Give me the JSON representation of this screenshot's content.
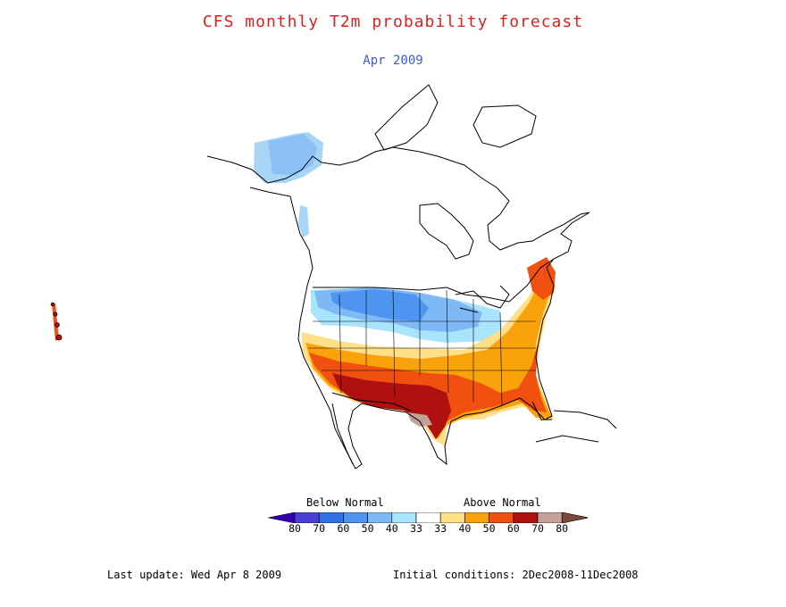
{
  "header": {
    "title": "CFS monthly T2m probability forecast",
    "subtitle": "Apr 2009"
  },
  "legend": {
    "below_label": "Below Normal",
    "above_label": "Above Normal",
    "colors": [
      "#3300aa",
      "#4b3fd6",
      "#2f6fe8",
      "#4d95f0",
      "#7fb9f5",
      "#a8e4fb",
      "#ffffff",
      "#ffe088",
      "#f9a20b",
      "#f05010",
      "#b01010",
      "#c4a09a",
      "#7a4a3a"
    ],
    "ticks": [
      "80",
      "70",
      "60",
      "50",
      "40",
      "33",
      "33",
      "40",
      "50",
      "60",
      "70",
      "80"
    ]
  },
  "footer": {
    "last_update": "Last update: Wed Apr 8 2009",
    "initial_conditions": "Initial conditions: 2Dec2008-11Dec2008"
  }
}
